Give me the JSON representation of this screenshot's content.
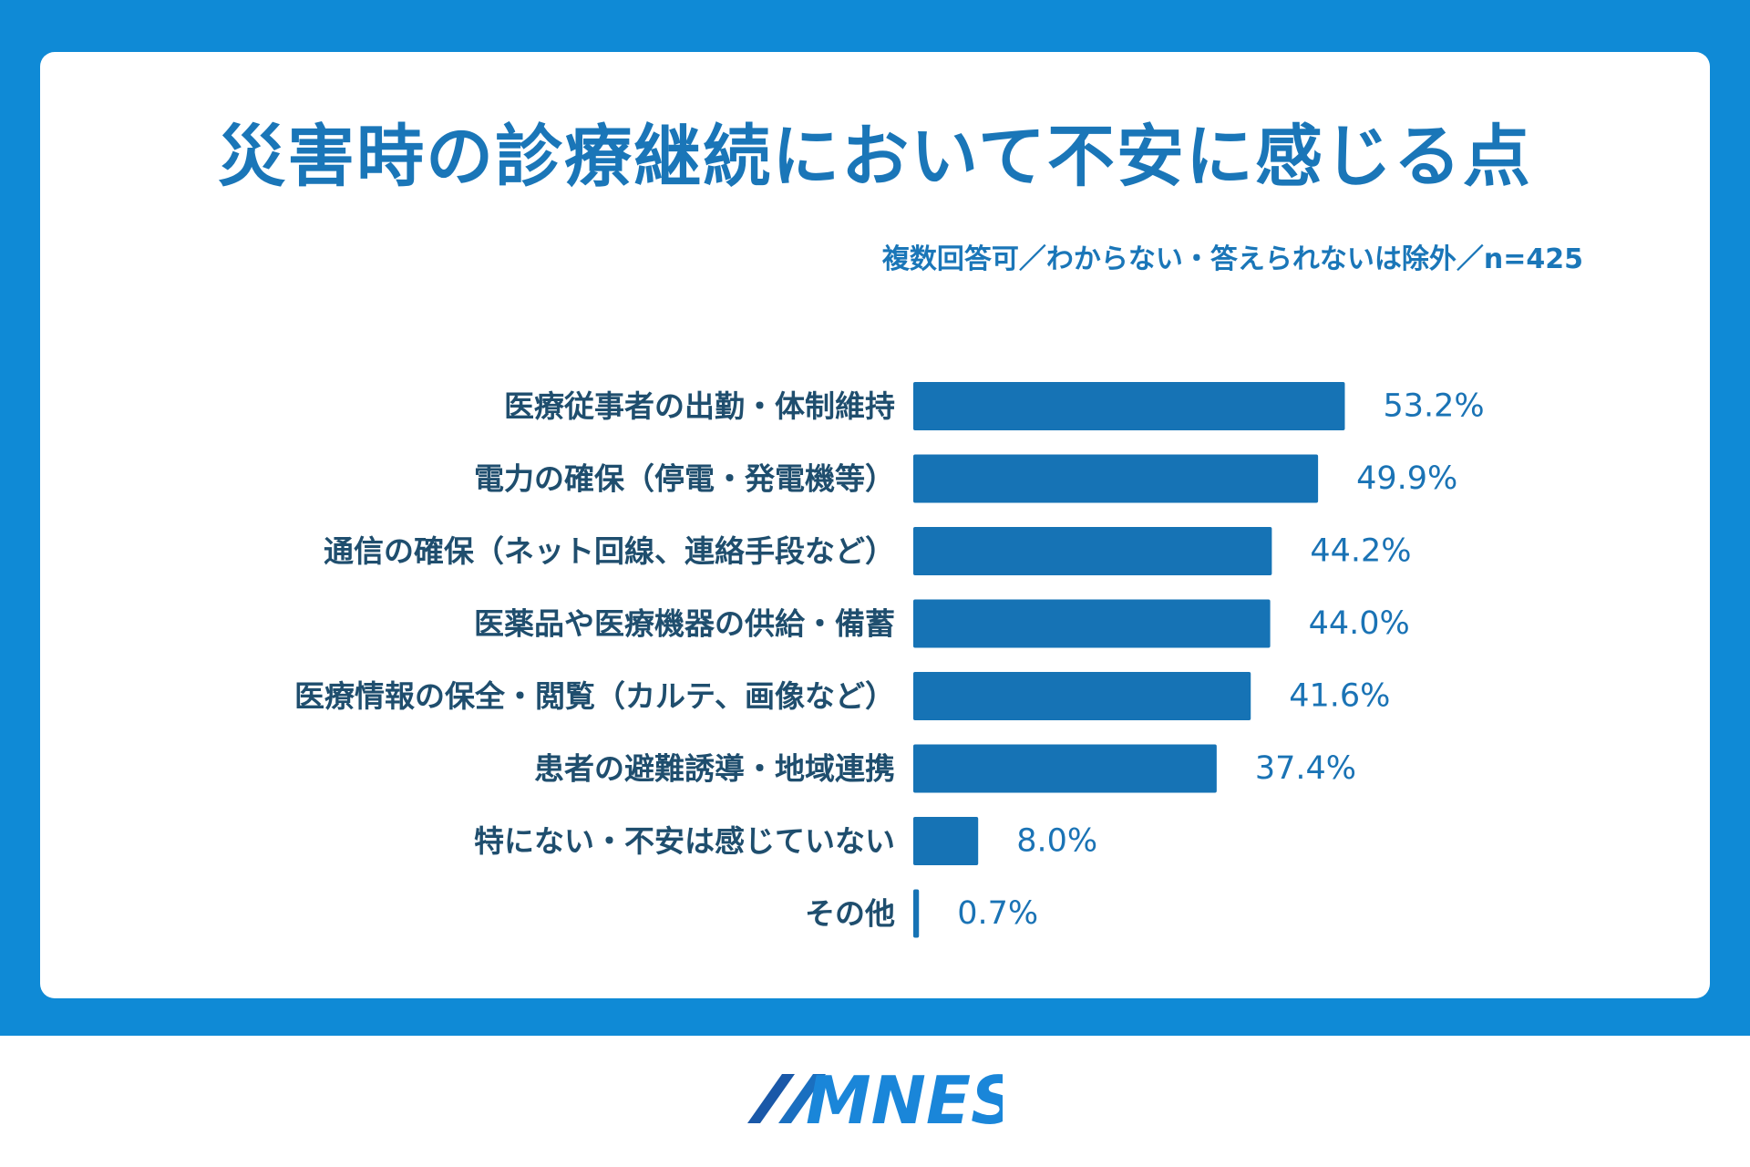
{
  "header": {
    "title": "災害時の診療継続において不安に感じる点",
    "subtitle": "複数回答可／わからない・答えられないは除外／n=425"
  },
  "brand": {
    "logo_text": "MNES",
    "frame_color": "#0f8ad6",
    "bar_color": "#1673b5"
  },
  "chart_data": {
    "type": "bar",
    "orientation": "horizontal",
    "title": "災害時の診療継続において不安に感じる点",
    "subtitle": "複数回答可／わからない・答えられないは除外／n=425",
    "xlabel": "",
    "ylabel": "",
    "unit": "%",
    "xlim": [
      0,
      100
    ],
    "grid": false,
    "categories": [
      "医療従事者の出勤・体制維持",
      "電力の確保（停電・発電機等）",
      "通信の確保（ネット回線、連絡手段など）",
      "医薬品や医療機器の供給・備蓄",
      "医療情報の保全・閲覧（カルテ、画像など）",
      "患者の避難誘導・地域連携",
      "特にない・不安は感じていない",
      "その他"
    ],
    "values": [
      53.2,
      49.9,
      44.2,
      44.0,
      41.6,
      37.4,
      8.0,
      0.7
    ],
    "value_labels": [
      "53.2%",
      "49.9%",
      "44.2%",
      "44.0%",
      "41.6%",
      "37.4%",
      "8.0%",
      "0.7%"
    ]
  }
}
